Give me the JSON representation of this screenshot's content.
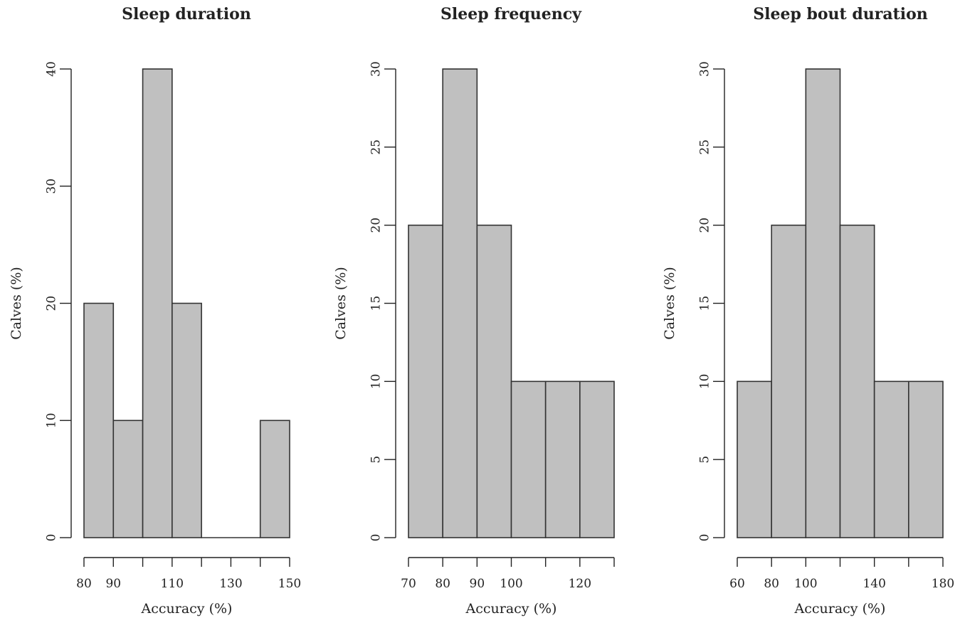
{
  "chart_data": [
    {
      "type": "bar",
      "title": "Sleep duration",
      "xlabel": "Accuracy (%)",
      "ylabel": "Calves (%)",
      "bin_edges": [
        80,
        90,
        100,
        110,
        120,
        130,
        140,
        150
      ],
      "values": [
        20,
        10,
        40,
        20,
        0,
        0,
        10
      ],
      "xlim": [
        80,
        150
      ],
      "ylim": [
        0,
        40
      ],
      "xticks": [
        80,
        90,
        110,
        130,
        150
      ],
      "xtick_marks": [
        80,
        90,
        100,
        110,
        120,
        130,
        140,
        150
      ],
      "yticks": [
        0,
        10,
        20,
        30,
        40
      ],
      "bar_color": "#c0c0c0",
      "edge_color": "#333333"
    },
    {
      "type": "bar",
      "title": "Sleep frequency",
      "xlabel": "Accuracy (%)",
      "ylabel": "Calves (%)",
      "bin_edges": [
        70,
        80,
        90,
        100,
        110,
        120,
        130
      ],
      "values": [
        20,
        30,
        20,
        10,
        10,
        10
      ],
      "xlim": [
        70,
        130
      ],
      "ylim": [
        0,
        30
      ],
      "xticks": [
        70,
        80,
        90,
        100,
        120
      ],
      "xtick_marks": [
        70,
        80,
        90,
        100,
        110,
        120,
        130
      ],
      "yticks": [
        0,
        5,
        10,
        15,
        20,
        25,
        30
      ],
      "bar_color": "#c0c0c0",
      "edge_color": "#333333"
    },
    {
      "type": "bar",
      "title": "Sleep bout duration",
      "xlabel": "Accuracy (%)",
      "ylabel": "Calves (%)",
      "bin_edges": [
        60,
        80,
        100,
        120,
        140,
        160,
        180
      ],
      "values": [
        10,
        20,
        30,
        20,
        10,
        10
      ],
      "xlim": [
        60,
        180
      ],
      "ylim": [
        0,
        30
      ],
      "xticks": [
        60,
        80,
        100,
        140,
        180
      ],
      "xtick_marks": [
        60,
        80,
        100,
        120,
        140,
        160,
        180
      ],
      "yticks": [
        0,
        5,
        10,
        15,
        20,
        25,
        30
      ],
      "bar_color": "#c0c0c0",
      "edge_color": "#333333"
    }
  ]
}
